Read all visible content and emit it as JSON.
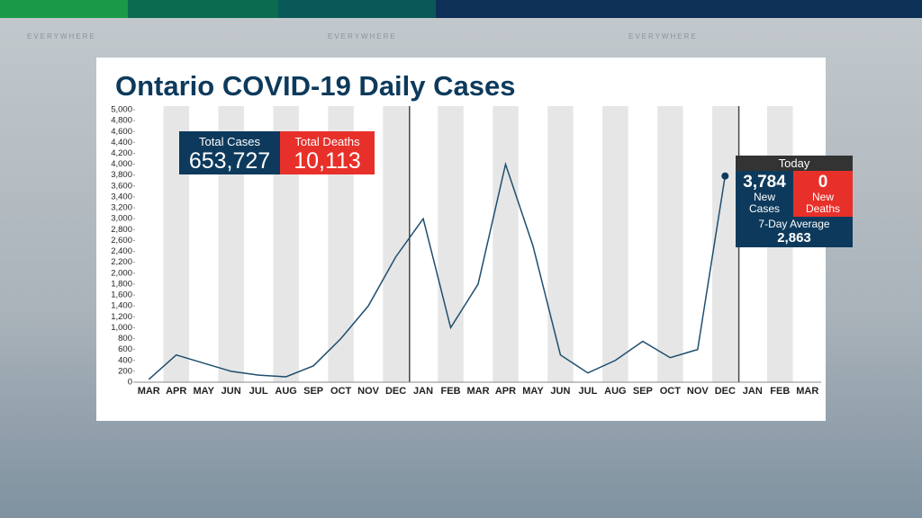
{
  "watermark": [
    "EVERYWHERE",
    "EVERYWHERE",
    "EVERYWHERE"
  ],
  "chart_data": {
    "type": "line",
    "title": "Ontario COVID-19 Daily Cases",
    "categories": [
      "MAR",
      "APR",
      "MAY",
      "JUN",
      "JUL",
      "AUG",
      "SEP",
      "OCT",
      "NOV",
      "DEC",
      "JAN",
      "FEB",
      "MAR",
      "APR",
      "MAY",
      "JUN",
      "JUL",
      "AUG",
      "SEP",
      "OCT",
      "NOV",
      "DEC",
      "JAN",
      "FEB",
      "MAR"
    ],
    "values": [
      50,
      500,
      350,
      200,
      130,
      100,
      300,
      800,
      1400,
      2300,
      3000,
      1000,
      1800,
      4000,
      2500,
      500,
      170,
      400,
      750,
      450,
      600,
      3784,
      null,
      null,
      null
    ],
    "color": "#1f4e6e",
    "ylim": [
      0,
      5000
    ],
    "yticks": [
      0,
      200,
      400,
      600,
      800,
      {
        "value": 1000,
        "label": "1,000"
      },
      {
        "value": 1200,
        "label": "1,200"
      },
      {
        "value": 1400,
        "label": "1,400"
      },
      {
        "value": 1600,
        "label": "1,600"
      },
      {
        "value": 1800,
        "label": "1,800"
      },
      {
        "value": 2000,
        "label": "2,000"
      },
      {
        "value": 2200,
        "label": "2,200"
      },
      {
        "value": 2400,
        "label": "2,400"
      },
      {
        "value": 2600,
        "label": "2,600"
      },
      {
        "value": 2800,
        "label": "2,800"
      },
      {
        "value": 3000,
        "label": "3,000"
      },
      {
        "value": 3200,
        "label": "3,200"
      },
      {
        "value": 3400,
        "label": "3,400"
      },
      {
        "value": 3600,
        "label": "3,600"
      },
      {
        "value": 3800,
        "label": "3,800"
      },
      {
        "value": 4000,
        "label": "4,000"
      },
      {
        "value": 4200,
        "label": "4,200"
      },
      {
        "value": 4400,
        "label": "4,400"
      },
      {
        "value": 4600,
        "label": "4,600"
      },
      {
        "value": 4800,
        "label": "4,800"
      },
      {
        "value": 5000,
        "label": "5,000"
      }
    ],
    "annotations": {
      "total_cases_label": "Total Cases",
      "total_cases": "653,727",
      "total_deaths_label": "Total Deaths",
      "total_deaths": "10,113",
      "today_label": "Today",
      "new_cases": "3,784",
      "new_cases_label": "New Cases",
      "new_deaths": "0",
      "new_deaths_label": "New Deaths",
      "average_label": "7-Day Average",
      "average": "2,863"
    }
  }
}
